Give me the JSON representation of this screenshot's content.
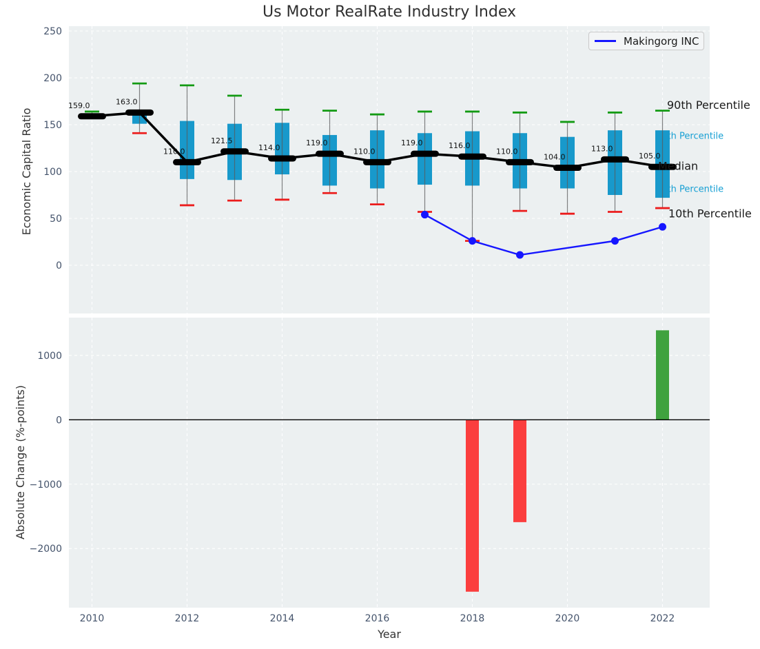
{
  "title": "Us Motor RealRate Industry Index",
  "legend": {
    "label": "Makingorg INC"
  },
  "top_chart": {
    "ylabel": "Economic Capital Ratio",
    "y_ticks": [
      "250",
      "200",
      "150",
      "100",
      "50",
      "0"
    ],
    "y_tick_values": [
      250,
      200,
      150,
      100,
      50,
      0
    ],
    "annotations": [
      {
        "key": "p90",
        "label": "90th Percentile",
        "style": "black"
      },
      {
        "key": "p75",
        "label": "75th Percentile",
        "style": "teal"
      },
      {
        "key": "median",
        "label": "Median",
        "style": "black"
      },
      {
        "key": "p25",
        "label": "25th Percentile",
        "style": "teal"
      },
      {
        "key": "p10",
        "label": "10th Percentile",
        "style": "black"
      }
    ]
  },
  "bottom_chart": {
    "ylabel": "Absolute Change (%-points)",
    "xlabel": "Year",
    "y_ticks": [
      "1000",
      "0",
      "−1000",
      "−2000"
    ],
    "y_tick_values": [
      1000,
      0,
      -1000,
      -2000
    ]
  },
  "x_ticks": [
    "2010",
    "2012",
    "2014",
    "2016",
    "2018",
    "2020",
    "2022"
  ],
  "x_tick_values": [
    2010,
    2012,
    2014,
    2016,
    2018,
    2020,
    2022
  ],
  "colors": {
    "axes_bg": "#ecf0f1",
    "grid": "#ffffff",
    "tick_text": "#44536b",
    "box": "#1899cb",
    "whisker": "#5a5a5a",
    "cap_high": "#129a12",
    "cap_low": "#ec1c1c",
    "median": "#000000",
    "median_label": "#111111",
    "company_line": "#1616ff",
    "bar_up": "#3fa23f",
    "bar_down": "#fb3e3e",
    "annotation_teal": "#18a0d4",
    "annotation_black": "#1a1a1a",
    "zero_line": "#000000"
  },
  "chart_data": [
    {
      "type": "boxplot",
      "title": "Us Motor RealRate Industry Index",
      "ylabel": "Economic Capital Ratio",
      "grid": true,
      "legend_position": "upper right",
      "ylim": [
        -50,
        257
      ],
      "years": [
        2010,
        2011,
        2012,
        2013,
        2014,
        2015,
        2016,
        2017,
        2018,
        2019,
        2020,
        2021,
        2022
      ],
      "percentile_90": [
        164,
        194,
        192,
        181,
        166,
        165,
        161,
        164,
        164,
        163,
        153,
        163,
        165
      ],
      "percentile_75": [
        161,
        162,
        154,
        151,
        152,
        139,
        144,
        141,
        143,
        141,
        137,
        144,
        144
      ],
      "median": [
        159,
        163,
        110,
        121.5,
        114,
        119,
        110,
        119,
        116,
        110,
        104,
        113,
        105
      ],
      "percentile_25": [
        158,
        151,
        92,
        91,
        97,
        85,
        82,
        86,
        85,
        82,
        82,
        75,
        72
      ],
      "percentile_10": [
        157,
        141,
        64,
        69,
        70,
        77,
        65,
        57,
        26,
        58,
        55,
        57,
        61
      ],
      "median_labels": [
        "159.0",
        "163.0",
        "110.0",
        "121.5",
        "114.0",
        "119.0",
        "110.0",
        "119.0",
        "116.0",
        "110.0",
        "104.0",
        "113.0",
        "105.0"
      ],
      "company_series": {
        "name": "Makingorg INC",
        "points": [
          [
            2017,
            54
          ],
          [
            2018,
            26
          ],
          [
            2019,
            11
          ],
          [
            2021,
            26
          ],
          [
            2022,
            41
          ]
        ]
      }
    },
    {
      "type": "bar",
      "ylabel": "Absolute Change (%-points)",
      "xlabel": "Year",
      "grid": true,
      "ylim": [
        -2920,
        1590
      ],
      "x": [
        2018,
        2019,
        2022
      ],
      "values": [
        -2670,
        -1590,
        1390
      ],
      "bar_colors": [
        "red",
        "red",
        "green"
      ]
    }
  ]
}
